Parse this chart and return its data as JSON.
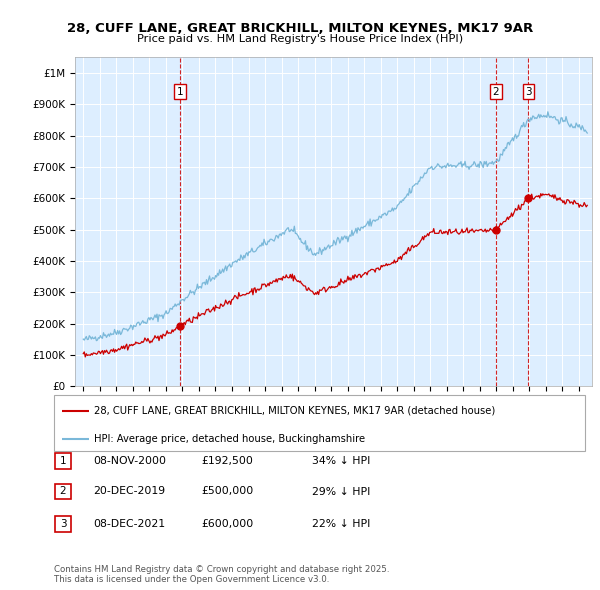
{
  "title_line1": "28, CUFF LANE, GREAT BRICKHILL, MILTON KEYNES, MK17 9AR",
  "title_line2": "Price paid vs. HM Land Registry's House Price Index (HPI)",
  "ylabel_ticks": [
    "£0",
    "£100K",
    "£200K",
    "£300K",
    "£400K",
    "£500K",
    "£600K",
    "£700K",
    "£800K",
    "£900K",
    "£1M"
  ],
  "ytick_values": [
    0,
    100000,
    200000,
    300000,
    400000,
    500000,
    600000,
    700000,
    800000,
    900000,
    1000000
  ],
  "xlim": [
    1994.5,
    2025.8
  ],
  "ylim": [
    0,
    1050000
  ],
  "hpi_color": "#7ab8d9",
  "price_color": "#cc0000",
  "dashed_color": "#cc0000",
  "background_color": "#ddeeff",
  "transactions": [
    {
      "date_num": 2000.86,
      "price": 192500,
      "label": "1"
    },
    {
      "date_num": 2019.97,
      "price": 500000,
      "label": "2"
    },
    {
      "date_num": 2021.94,
      "price": 600000,
      "label": "3"
    }
  ],
  "legend_entries": [
    "28, CUFF LANE, GREAT BRICKHILL, MILTON KEYNES, MK17 9AR (detached house)",
    "HPI: Average price, detached house, Buckinghamshire"
  ],
  "table_rows": [
    {
      "num": "1",
      "date": "08-NOV-2000",
      "price": "£192,500",
      "note": "34% ↓ HPI"
    },
    {
      "num": "2",
      "date": "20-DEC-2019",
      "price": "£500,000",
      "note": "29% ↓ HPI"
    },
    {
      "num": "3",
      "date": "08-DEC-2021",
      "price": "£600,000",
      "note": "22% ↓ HPI"
    }
  ],
  "footnote": "Contains HM Land Registry data © Crown copyright and database right 2025.\nThis data is licensed under the Open Government Licence v3.0."
}
